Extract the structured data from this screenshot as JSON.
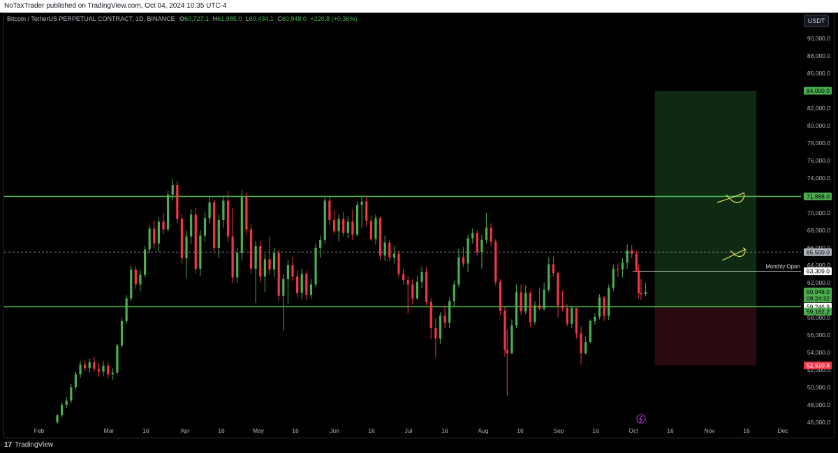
{
  "header": {
    "published": "NoTaxTrader published on TradingView.com, Oct 04, 2024 10:35 UTC-4"
  },
  "legend": {
    "symbol": "Bitcoin / TetherUS PERPETUAL CONTRACT, 1D, BINANCE",
    "o_label": "O",
    "o": "60,727.1",
    "h_label": "H",
    "h": "61,985.0",
    "l_label": "L",
    "l": "60,434.1",
    "c_label": "C",
    "c": "60,948.0",
    "chg": "+220.8 (+0.36%)"
  },
  "currency_button": "USDT",
  "footer": {
    "brand": "TradingView"
  },
  "colors": {
    "up": "#26a69a",
    "bull": "#4caf50",
    "bear": "#f23645",
    "level_line": "#4caf50",
    "target_zone": "#0e2a12",
    "stop_zone": "#2a0a0e"
  },
  "chart_data": {
    "type": "candlestick",
    "ylim": [
      46000,
      92000
    ],
    "y_ticks": [
      "46,000.0",
      "48,000.0",
      "50,000.0",
      "52,000.0",
      "54,000.0",
      "56,000.0",
      "58,000.0",
      "60,000.0",
      "62,000.0",
      "64,000.0",
      "66,000.0",
      "68,000.0",
      "70,000.0",
      "72,000.0",
      "74,000.0",
      "76,000.0",
      "78,000.0",
      "80,000.0",
      "82,000.0",
      "84,000.0",
      "86,000.0",
      "88,000.0",
      "90,000.0"
    ],
    "x_ticks": [
      "Feb",
      "Mar",
      "16",
      "Apr",
      "16",
      "May",
      "16",
      "Jun",
      "16",
      "Jul",
      "16",
      "Aug",
      "16",
      "Sep",
      "16",
      "Oct",
      "16",
      "Nov",
      "16",
      "Dec"
    ],
    "x_start": "2024-01-23",
    "x_end": "2024-12-07",
    "horizontal_levels": [
      {
        "label": "71,888.0",
        "value": 71888,
        "style": "solid"
      },
      {
        "label": "65,500.0",
        "value": 65500,
        "style": "dashed"
      },
      {
        "label": "59,246.9",
        "value": 59246.9,
        "style": "solid"
      }
    ],
    "monthly_open": {
      "text": "Monthly Open",
      "label": "63,309.0",
      "value": 63309
    },
    "price_labels": {
      "last": "60,948.0",
      "countdown": "09:24:32",
      "entry": "59,182.2",
      "target": "84,000.0",
      "stop": "52,510.8"
    },
    "position": {
      "entry": 59182.2,
      "target": 84000,
      "stop": 52510.8,
      "from": "2024-10-08",
      "to": "2024-11-21"
    },
    "candles": [
      [
        "2024-01-23",
        46000,
        47000,
        45800,
        46800
      ],
      [
        "2024-01-25",
        46800,
        48300,
        46600,
        48000
      ],
      [
        "2024-01-27",
        48000,
        48900,
        47600,
        48500
      ],
      [
        "2024-01-29",
        48500,
        50400,
        48200,
        50000
      ],
      [
        "2024-01-31",
        50000,
        51800,
        49700,
        51500
      ],
      [
        "2024-02-02",
        51500,
        53000,
        51100,
        52600
      ],
      [
        "2024-02-04",
        52600,
        53200,
        51900,
        52200
      ],
      [
        "2024-02-06",
        52200,
        53300,
        51700,
        52900
      ],
      [
        "2024-02-08",
        52900,
        53500,
        51800,
        52100
      ],
      [
        "2024-02-10",
        52100,
        52800,
        51200,
        51800
      ],
      [
        "2024-02-12",
        51800,
        53000,
        51300,
        52500
      ],
      [
        "2024-02-14",
        52500,
        52900,
        51100,
        51500
      ],
      [
        "2024-02-16",
        51500,
        52200,
        50900,
        51700
      ],
      [
        "2024-02-18",
        51700,
        55000,
        51500,
        54800
      ],
      [
        "2024-02-20",
        54800,
        58000,
        54500,
        57600
      ],
      [
        "2024-02-22",
        57600,
        60600,
        57300,
        60200
      ],
      [
        "2024-02-24",
        60200,
        64000,
        59900,
        63500
      ],
      [
        "2024-02-26",
        63500,
        63900,
        61300,
        61800
      ],
      [
        "2024-02-28",
        61800,
        63400,
        61000,
        62900
      ],
      [
        "2024-03-01",
        62900,
        66200,
        62600,
        65800
      ],
      [
        "2024-03-03",
        65800,
        68600,
        65400,
        68200
      ],
      [
        "2024-03-05",
        68200,
        69100,
        66000,
        66500
      ],
      [
        "2024-03-07",
        66500,
        69500,
        65500,
        69000
      ],
      [
        "2024-03-09",
        69000,
        70000,
        67600,
        68100
      ],
      [
        "2024-03-11",
        68100,
        72500,
        67900,
        72100
      ],
      [
        "2024-03-13",
        72100,
        73900,
        71400,
        73200
      ],
      [
        "2024-03-15",
        73200,
        73700,
        68800,
        69300
      ],
      [
        "2024-03-17",
        69300,
        69900,
        64200,
        64800
      ],
      [
        "2024-03-19",
        64800,
        68000,
        62500,
        67300
      ],
      [
        "2024-03-21",
        67300,
        70400,
        66400,
        69800
      ],
      [
        "2024-03-23",
        69800,
        70600,
        63100,
        63600
      ],
      [
        "2024-03-25",
        63600,
        68000,
        62800,
        67400
      ],
      [
        "2024-03-27",
        67400,
        70100,
        66700,
        69400
      ],
      [
        "2024-03-29",
        69400,
        71800,
        68800,
        71200
      ],
      [
        "2024-03-31",
        71200,
        71500,
        65400,
        66000
      ],
      [
        "2024-04-02",
        66000,
        69800,
        64800,
        69200
      ],
      [
        "2024-04-04",
        69200,
        71900,
        68300,
        71400
      ],
      [
        "2024-04-06",
        71400,
        72500,
        66700,
        67300
      ],
      [
        "2024-04-08",
        67300,
        70600,
        62000,
        62600
      ],
      [
        "2024-04-10",
        62600,
        66000,
        62000,
        65400
      ],
      [
        "2024-04-12",
        65400,
        72600,
        64600,
        71800
      ],
      [
        "2024-04-14",
        71800,
        72300,
        67500,
        68100
      ],
      [
        "2024-04-16",
        68100,
        68700,
        63000,
        63600
      ],
      [
        "2024-04-18",
        63600,
        66800,
        59700,
        66200
      ],
      [
        "2024-04-20",
        66200,
        66800,
        62100,
        62700
      ],
      [
        "2024-04-22",
        62700,
        65300,
        60900,
        64700
      ],
      [
        "2024-04-24",
        64700,
        67300,
        63000,
        63500
      ],
      [
        "2024-04-26",
        63500,
        66000,
        62600,
        65400
      ],
      [
        "2024-04-28",
        65400,
        65800,
        59900,
        60500
      ],
      [
        "2024-04-30",
        60500,
        63000,
        56500,
        62400
      ],
      [
        "2024-05-02",
        62400,
        64600,
        59600,
        64000
      ],
      [
        "2024-05-04",
        64000,
        65000,
        62200,
        62700
      ],
      [
        "2024-05-06",
        62700,
        63400,
        60300,
        60800
      ],
      [
        "2024-05-08",
        60800,
        63600,
        60100,
        63000
      ],
      [
        "2024-05-10",
        63000,
        63400,
        60000,
        60600
      ],
      [
        "2024-05-12",
        60600,
        62400,
        60200,
        61800
      ],
      [
        "2024-05-14",
        61800,
        66500,
        61500,
        66000
      ],
      [
        "2024-05-16",
        66000,
        67400,
        64900,
        66900
      ],
      [
        "2024-05-18",
        66900,
        71900,
        66500,
        71400
      ],
      [
        "2024-05-20",
        71400,
        71800,
        68600,
        69200
      ],
      [
        "2024-05-22",
        69200,
        70300,
        67600,
        67900
      ],
      [
        "2024-05-24",
        67900,
        69800,
        66800,
        69300
      ],
      [
        "2024-05-26",
        69300,
        70100,
        67300,
        67700
      ],
      [
        "2024-05-28",
        67700,
        69600,
        67100,
        69000
      ],
      [
        "2024-05-30",
        69000,
        70400,
        66900,
        67500
      ],
      [
        "2024-06-01",
        67500,
        71300,
        67300,
        70900
      ],
      [
        "2024-06-03",
        70900,
        71800,
        68300,
        71300
      ],
      [
        "2024-06-05",
        71300,
        71900,
        68500,
        69100
      ],
      [
        "2024-06-07",
        69100,
        69700,
        66800,
        67000
      ],
      [
        "2024-06-09",
        67000,
        69800,
        66400,
        69400
      ],
      [
        "2024-06-11",
        69400,
        69600,
        64600,
        65100
      ],
      [
        "2024-06-13",
        65100,
        67400,
        64500,
        66600
      ],
      [
        "2024-06-15",
        66600,
        66900,
        64500,
        64900
      ],
      [
        "2024-06-17",
        64900,
        66200,
        64200,
        65300
      ],
      [
        "2024-06-19",
        65300,
        65700,
        62600,
        63000
      ],
      [
        "2024-06-21",
        63000,
        63600,
        61800,
        62300
      ],
      [
        "2024-06-23",
        62300,
        62700,
        58400,
        61800
      ],
      [
        "2024-06-25",
        61800,
        62400,
        59500,
        60200
      ],
      [
        "2024-06-27",
        60200,
        62800,
        60000,
        62100
      ],
      [
        "2024-06-29",
        62100,
        63800,
        61400,
        63200
      ],
      [
        "2024-07-01",
        63200,
        63800,
        59400,
        59800
      ],
      [
        "2024-07-03",
        59800,
        60200,
        55500,
        56800
      ],
      [
        "2024-07-05",
        56800,
        57900,
        53500,
        55600
      ],
      [
        "2024-07-07",
        55600,
        58600,
        55000,
        58200
      ],
      [
        "2024-07-09",
        58200,
        59400,
        56800,
        57400
      ],
      [
        "2024-07-11",
        57400,
        60300,
        56800,
        59900
      ],
      [
        "2024-07-13",
        59900,
        62200,
        59300,
        61800
      ],
      [
        "2024-07-15",
        61800,
        65900,
        61500,
        64900
      ],
      [
        "2024-07-17",
        64900,
        66100,
        63800,
        64200
      ],
      [
        "2024-07-19",
        64200,
        67500,
        63200,
        67100
      ],
      [
        "2024-07-21",
        67100,
        68200,
        66500,
        67700
      ],
      [
        "2024-07-23",
        67700,
        68000,
        65100,
        65500
      ],
      [
        "2024-07-25",
        65500,
        67500,
        63600,
        66900
      ],
      [
        "2024-07-27",
        66900,
        70000,
        66500,
        68300
      ],
      [
        "2024-07-29",
        68300,
        68800,
        66200,
        66700
      ],
      [
        "2024-07-31",
        66700,
        67000,
        61700,
        62100
      ],
      [
        "2024-08-02",
        62100,
        62400,
        58300,
        58800
      ],
      [
        "2024-08-04",
        58800,
        59200,
        53500,
        54300
      ],
      [
        "2024-08-05",
        54300,
        56600,
        49000,
        53900
      ],
      [
        "2024-08-07",
        53900,
        57800,
        53800,
        57100
      ],
      [
        "2024-08-09",
        57100,
        61800,
        56800,
        60900
      ],
      [
        "2024-08-11",
        60900,
        61800,
        58300,
        58700
      ],
      [
        "2024-08-13",
        58700,
        61700,
        58400,
        60800
      ],
      [
        "2024-08-15",
        60800,
        61100,
        56900,
        57500
      ],
      [
        "2024-08-17",
        57500,
        59900,
        57200,
        59400
      ],
      [
        "2024-08-19",
        59400,
        61400,
        58900,
        59000
      ],
      [
        "2024-08-21",
        59000,
        62000,
        58800,
        61200
      ],
      [
        "2024-08-23",
        61200,
        64900,
        60900,
        64100
      ],
      [
        "2024-08-25",
        64100,
        65000,
        62700,
        63100
      ],
      [
        "2024-08-27",
        63100,
        63300,
        58000,
        59400
      ],
      [
        "2024-08-29",
        59400,
        61100,
        58700,
        59100
      ],
      [
        "2024-08-31",
        59100,
        59500,
        57000,
        57300
      ],
      [
        "2024-09-02",
        57300,
        59400,
        56800,
        59100
      ],
      [
        "2024-09-04",
        59100,
        59000,
        55600,
        56200
      ],
      [
        "2024-09-06",
        56200,
        57000,
        52600,
        53900
      ],
      [
        "2024-09-08",
        53900,
        55800,
        53800,
        55200
      ],
      [
        "2024-09-10",
        55200,
        57800,
        55100,
        57600
      ],
      [
        "2024-09-12",
        57600,
        58500,
        57200,
        58100
      ],
      [
        "2024-09-14",
        58100,
        60700,
        57800,
        60300
      ],
      [
        "2024-09-16",
        60300,
        60500,
        57600,
        58200
      ],
      [
        "2024-09-18",
        58200,
        61800,
        57700,
        61400
      ],
      [
        "2024-09-20",
        61400,
        64100,
        61000,
        63600
      ],
      [
        "2024-09-22",
        63600,
        64200,
        62700,
        63500
      ],
      [
        "2024-09-24",
        63500,
        64800,
        62600,
        64300
      ],
      [
        "2024-09-26",
        64300,
        66400,
        63600,
        65700
      ],
      [
        "2024-09-28",
        65700,
        66300,
        64800,
        65300
      ],
      [
        "2024-09-30",
        65300,
        65600,
        63200,
        63400
      ],
      [
        "2024-10-01",
        63400,
        64100,
        60200,
        60800
      ],
      [
        "2024-10-02",
        60800,
        62400,
        60000,
        60700
      ],
      [
        "2024-10-04",
        60727.1,
        61985,
        60434.1,
        60948
      ]
    ]
  }
}
